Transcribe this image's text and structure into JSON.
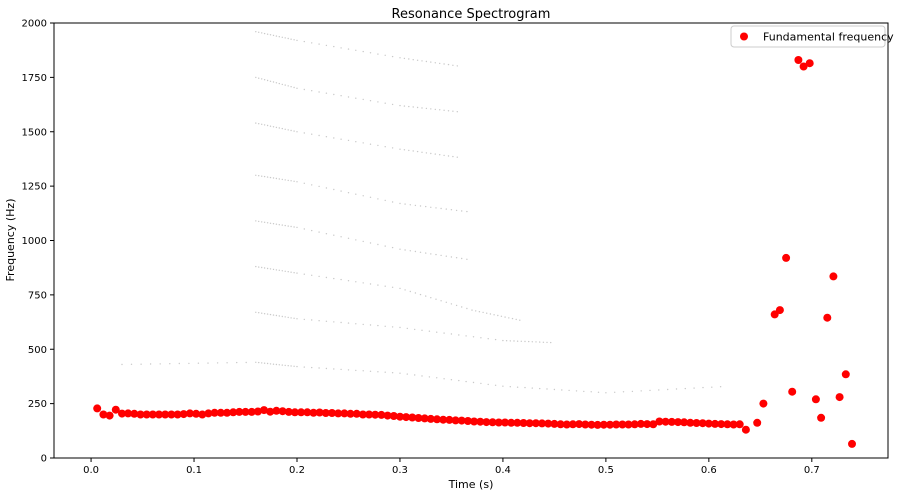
{
  "chart_data": {
    "type": "scatter",
    "title": "Resonance Spectrogram",
    "xlabel": "Time (s)",
    "ylabel": "Frequency (Hz)",
    "xlim": [
      -0.036,
      0.774
    ],
    "ylim": [
      0,
      2000
    ],
    "xticks": [
      0.0,
      0.1,
      0.2,
      0.3,
      0.4,
      0.5,
      0.6,
      0.7
    ],
    "xtick_labels": [
      "0.0",
      "0.1",
      "0.2",
      "0.3",
      "0.4",
      "0.5",
      "0.6",
      "0.7"
    ],
    "yticks": [
      0,
      250,
      500,
      750,
      1000,
      1250,
      1500,
      1750,
      2000
    ],
    "ytick_labels": [
      "0",
      "250",
      "500",
      "750",
      "1000",
      "1250",
      "1500",
      "1750",
      "2000"
    ],
    "legend_position": "top-right",
    "grid": false,
    "background_series": {
      "color": "#888888",
      "note_hidden": "",
      "harmonic_tracks": [
        {
          "x": [
            0.03,
            0.16,
            0.2,
            0.3,
            0.4,
            0.5,
            0.62
          ],
          "y": [
            430,
            440,
            420,
            390,
            330,
            300,
            330
          ]
        },
        {
          "x": [
            0.16,
            0.2,
            0.3,
            0.4,
            0.45
          ],
          "y": [
            670,
            640,
            600,
            540,
            530
          ]
        },
        {
          "x": [
            0.16,
            0.2,
            0.3,
            0.37,
            0.42
          ],
          "y": [
            880,
            850,
            780,
            680,
            630
          ]
        },
        {
          "x": [
            0.16,
            0.2,
            0.3,
            0.37
          ],
          "y": [
            1090,
            1060,
            960,
            910
          ]
        },
        {
          "x": [
            0.16,
            0.2,
            0.3,
            0.37
          ],
          "y": [
            1300,
            1270,
            1170,
            1130
          ]
        },
        {
          "x": [
            0.16,
            0.2,
            0.3,
            0.36
          ],
          "y": [
            1540,
            1500,
            1420,
            1380
          ]
        },
        {
          "x": [
            0.16,
            0.2,
            0.3,
            0.36
          ],
          "y": [
            1750,
            1700,
            1620,
            1590
          ]
        },
        {
          "x": [
            0.16,
            0.2,
            0.3,
            0.36
          ],
          "y": [
            1960,
            1920,
            1840,
            1800
          ]
        }
      ]
    },
    "series": [
      {
        "name": "Fundamental frequency",
        "color": "#ff0000",
        "x": [
          0.006,
          0.012,
          0.018,
          0.024,
          0.03,
          0.036,
          0.042,
          0.048,
          0.054,
          0.06,
          0.066,
          0.072,
          0.078,
          0.084,
          0.09,
          0.096,
          0.102,
          0.108,
          0.114,
          0.12,
          0.126,
          0.132,
          0.138,
          0.144,
          0.15,
          0.156,
          0.162,
          0.168,
          0.174,
          0.18,
          0.186,
          0.192,
          0.198,
          0.204,
          0.21,
          0.216,
          0.222,
          0.228,
          0.234,
          0.24,
          0.246,
          0.252,
          0.258,
          0.264,
          0.27,
          0.276,
          0.282,
          0.288,
          0.294,
          0.3,
          0.306,
          0.312,
          0.318,
          0.324,
          0.33,
          0.336,
          0.342,
          0.348,
          0.354,
          0.36,
          0.366,
          0.372,
          0.378,
          0.384,
          0.39,
          0.396,
          0.402,
          0.408,
          0.414,
          0.42,
          0.426,
          0.432,
          0.438,
          0.444,
          0.45,
          0.456,
          0.462,
          0.468,
          0.474,
          0.48,
          0.486,
          0.492,
          0.498,
          0.504,
          0.51,
          0.516,
          0.522,
          0.528,
          0.534,
          0.54,
          0.546,
          0.552,
          0.558,
          0.564,
          0.57,
          0.576,
          0.582,
          0.588,
          0.594,
          0.6,
          0.606,
          0.612,
          0.618,
          0.624,
          0.63,
          0.636,
          0.647,
          0.653,
          0.664,
          0.669,
          0.675,
          0.681,
          0.687,
          0.692,
          0.698,
          0.704,
          0.709,
          0.715,
          0.721,
          0.727,
          0.733,
          0.739
        ],
        "y": [
          228,
          200,
          195,
          222,
          204,
          205,
          203,
          200,
          200,
          200,
          200,
          200,
          200,
          200,
          202,
          205,
          203,
          200,
          205,
          208,
          208,
          208,
          210,
          212,
          212,
          212,
          214,
          220,
          213,
          217,
          215,
          212,
          210,
          210,
          210,
          208,
          209,
          207,
          207,
          205,
          205,
          203,
          203,
          200,
          200,
          199,
          198,
          195,
          193,
          190,
          188,
          186,
          184,
          182,
          180,
          178,
          176,
          175,
          173,
          172,
          170,
          168,
          167,
          165,
          164,
          163,
          163,
          162,
          162,
          161,
          160,
          160,
          159,
          158,
          157,
          155,
          154,
          155,
          156,
          154,
          153,
          152,
          153,
          153,
          154,
          154,
          154,
          155,
          157,
          156,
          155,
          168,
          167,
          166,
          165,
          164,
          162,
          161,
          160,
          158,
          157,
          156,
          155,
          154,
          155,
          130,
          162,
          250,
          660,
          680,
          920,
          305,
          1830,
          1800,
          1815,
          270,
          185,
          645,
          835,
          280,
          385,
          65
        ]
      }
    ]
  }
}
